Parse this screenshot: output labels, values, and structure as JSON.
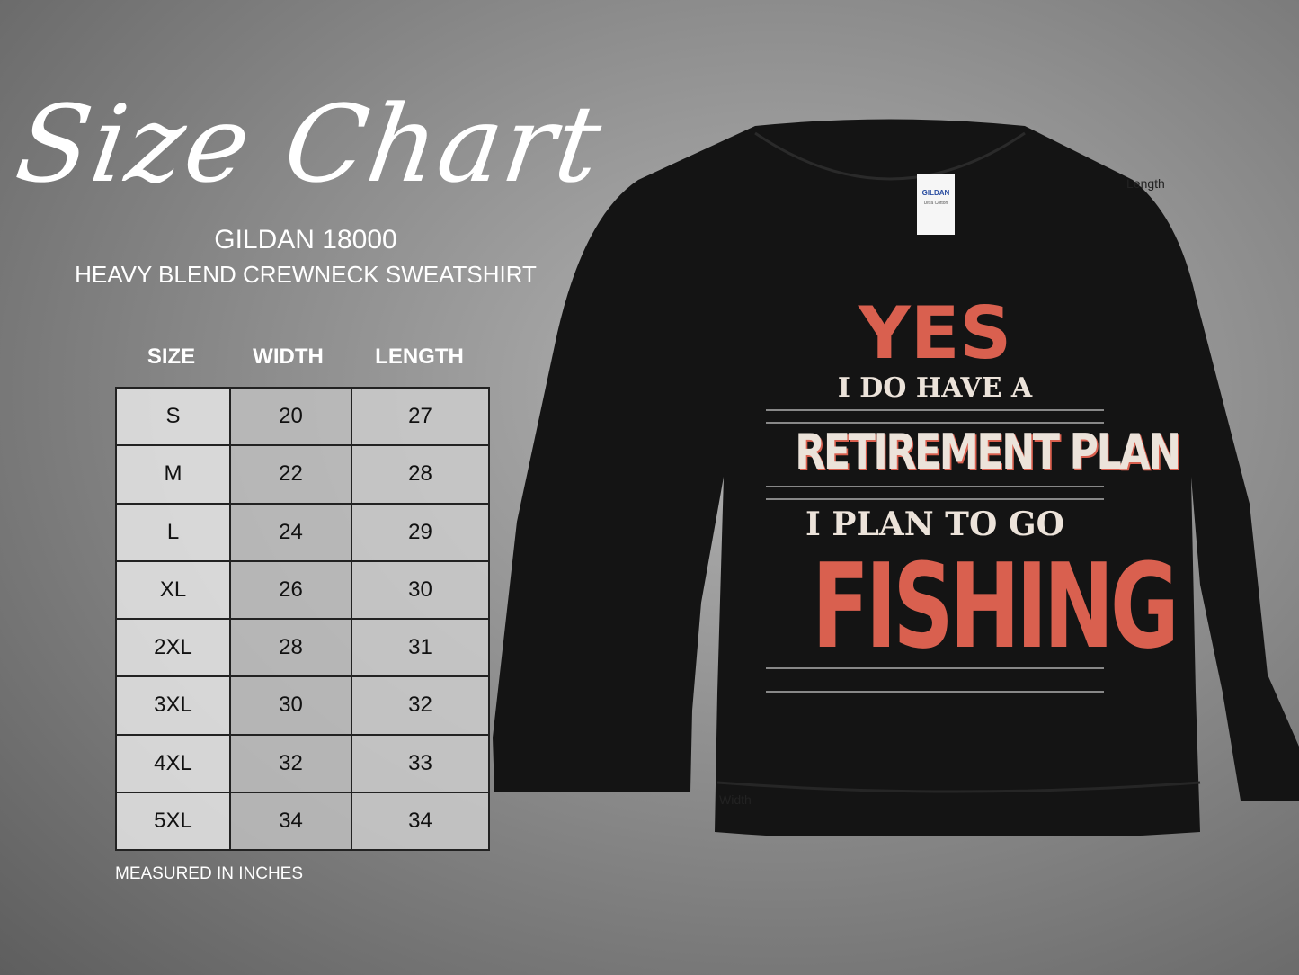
{
  "header": {
    "title": "Size Chart",
    "brand": "GILDAN 18000",
    "product": "HEAVY BLEND CREWNECK SWEATSHIRT"
  },
  "table": {
    "columns": [
      "SIZE",
      "WIDTH",
      "LENGTH"
    ],
    "rows": [
      [
        "S",
        "20",
        "27"
      ],
      [
        "M",
        "22",
        "28"
      ],
      [
        "L",
        "24",
        "29"
      ],
      [
        "XL",
        "26",
        "30"
      ],
      [
        "2XL",
        "28",
        "31"
      ],
      [
        "3XL",
        "30",
        "32"
      ],
      [
        "4XL",
        "32",
        "33"
      ],
      [
        "5XL",
        "34",
        "34"
      ]
    ]
  },
  "note": "MEASURED IN INCHES",
  "shirt": {
    "color": "#141414",
    "label_brand": "GILDAN",
    "label_sub": "Ultra Cotton",
    "length_label": "Length",
    "width_label": "Width",
    "design": {
      "line1": "YES",
      "line2": "I DO HAVE A",
      "line3": "RETIREMENT PLAN",
      "line4": "I PLAN TO GO",
      "line5": "FISHING",
      "accent": "#d9604f",
      "cream": "#ece3da"
    }
  }
}
